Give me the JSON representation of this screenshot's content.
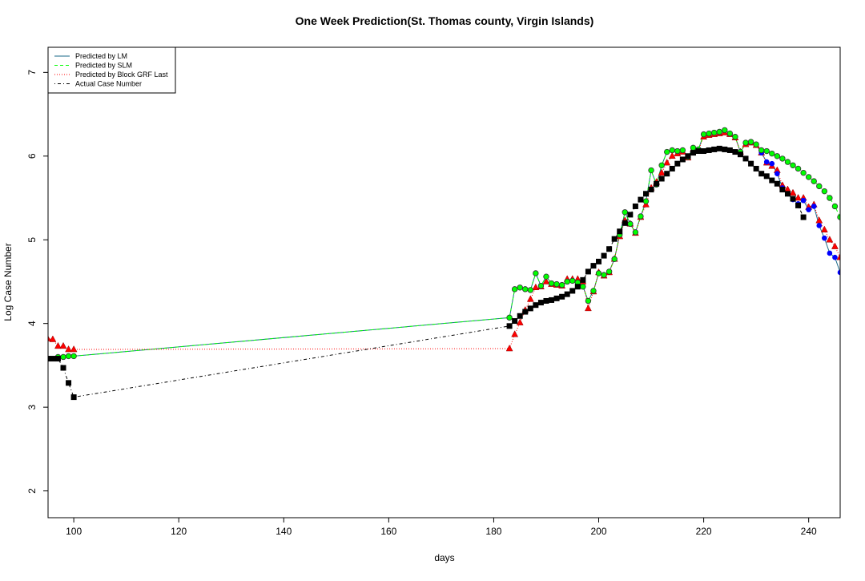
{
  "chart_data": {
    "type": "line",
    "title": "One Week Prediction(St. Thomas county, Virgin Islands)",
    "x_label": "days",
    "y_label": "Log Case Number",
    "xlim": [
      95.1,
      246
    ],
    "ylim": [
      1.68,
      7.3
    ],
    "xticks": [
      100,
      120,
      140,
      160,
      180,
      200,
      220,
      240
    ],
    "yticks": [
      2,
      3,
      4,
      5,
      6,
      7
    ],
    "legend": "top-left",
    "series": [
      {
        "name": "Predicted by LM",
        "color": "#0000ff",
        "line_color": "#1a6a8a",
        "line_style": "solid",
        "marker": "circle",
        "x": [
          97,
          98,
          99,
          100,
          183,
          184,
          185,
          186,
          187,
          188,
          189,
          190,
          191,
          192,
          193,
          194,
          195,
          196,
          197,
          198,
          199,
          200,
          201,
          202,
          203,
          204,
          205,
          206,
          207,
          208,
          209,
          210,
          211,
          212,
          213,
          214,
          215,
          216,
          217,
          218,
          219,
          220,
          221,
          222,
          223,
          224,
          225,
          226,
          227,
          228,
          229,
          230,
          231,
          232,
          233,
          234,
          235,
          236,
          237,
          238,
          239,
          240,
          241,
          242,
          243,
          244,
          245,
          246
        ],
        "values": [
          3.6,
          3.6,
          3.61,
          3.61,
          4.07,
          4.41,
          4.43,
          4.41,
          4.4,
          4.6,
          4.45,
          4.56,
          4.48,
          4.47,
          4.46,
          4.5,
          4.51,
          4.49,
          4.44,
          4.27,
          4.39,
          4.6,
          4.58,
          4.62,
          4.77,
          5.06,
          5.33,
          5.19,
          5.09,
          5.28,
          5.46,
          5.83,
          5.66,
          5.89,
          6.05,
          6.07,
          6.06,
          6.07,
          5.99,
          6.1,
          6.08,
          6.26,
          6.27,
          6.28,
          6.29,
          6.31,
          6.27,
          6.23,
          6.05,
          6.16,
          6.17,
          6.14,
          6.04,
          5.93,
          5.91,
          5.79,
          5.62,
          5.55,
          5.48,
          5.43,
          5.47,
          5.36,
          5.4,
          5.17,
          5.02,
          4.84,
          4.79,
          4.61
        ]
      },
      {
        "name": "Predicted by SLM",
        "color": "#00ff00",
        "line_color": "#00ff00",
        "line_style": "dashed",
        "marker": "circle",
        "x": [
          97,
          98,
          99,
          100,
          183,
          184,
          185,
          186,
          187,
          188,
          189,
          190,
          191,
          192,
          193,
          194,
          195,
          196,
          197,
          198,
          199,
          200,
          201,
          202,
          203,
          204,
          205,
          206,
          207,
          208,
          209,
          210,
          211,
          212,
          213,
          214,
          215,
          216,
          217,
          218,
          219,
          220,
          221,
          222,
          223,
          224,
          225,
          226,
          227,
          228,
          229,
          230,
          231,
          232,
          233,
          234,
          235,
          236,
          237,
          238,
          239,
          240,
          241,
          242,
          243,
          244,
          245,
          246
        ],
        "values": [
          3.6,
          3.6,
          3.61,
          3.61,
          4.07,
          4.41,
          4.43,
          4.41,
          4.4,
          4.6,
          4.45,
          4.56,
          4.48,
          4.47,
          4.46,
          4.5,
          4.51,
          4.49,
          4.44,
          4.27,
          4.39,
          4.6,
          4.58,
          4.62,
          4.77,
          5.06,
          5.33,
          5.19,
          5.09,
          5.28,
          5.46,
          5.83,
          5.66,
          5.89,
          6.05,
          6.07,
          6.06,
          6.07,
          5.99,
          6.1,
          6.08,
          6.26,
          6.27,
          6.28,
          6.29,
          6.31,
          6.27,
          6.23,
          6.05,
          6.16,
          6.17,
          6.14,
          6.07,
          6.06,
          6.03,
          6.0,
          5.97,
          5.93,
          5.89,
          5.85,
          5.8,
          5.75,
          5.7,
          5.64,
          5.58,
          5.5,
          5.4,
          5.27
        ]
      },
      {
        "name": "Predicted by Block GRF Last",
        "color": "#ff0000",
        "line_color": "#ff0000",
        "line_style": "dotted",
        "marker": "triangle",
        "x": [
          95,
          96,
          97,
          98,
          99,
          100,
          183,
          184,
          185,
          186,
          187,
          188,
          189,
          190,
          191,
          192,
          193,
          194,
          195,
          196,
          197,
          198,
          199,
          200,
          201,
          202,
          203,
          204,
          205,
          206,
          207,
          208,
          209,
          210,
          211,
          212,
          213,
          214,
          215,
          216,
          217,
          218,
          219,
          220,
          221,
          222,
          223,
          224,
          225,
          226,
          227,
          228,
          229,
          230,
          231,
          232,
          233,
          234,
          235,
          236,
          237,
          238,
          239,
          240,
          241,
          242,
          243,
          244,
          245,
          246
        ],
        "values": [
          3.82,
          3.81,
          3.73,
          3.73,
          3.69,
          3.69,
          3.7,
          3.87,
          4.01,
          4.16,
          4.29,
          4.43,
          4.44,
          4.5,
          4.47,
          4.46,
          4.45,
          4.53,
          4.53,
          4.53,
          4.5,
          4.18,
          4.38,
          4.61,
          4.57,
          4.61,
          4.77,
          5.04,
          5.23,
          5.19,
          5.08,
          5.27,
          5.42,
          5.62,
          5.69,
          5.8,
          5.92,
          6.0,
          6.03,
          6.05,
          5.98,
          6.08,
          6.07,
          6.23,
          6.25,
          6.26,
          6.27,
          6.28,
          6.26,
          6.22,
          6.05,
          6.14,
          6.16,
          6.13,
          6.04,
          5.92,
          5.88,
          5.83,
          5.65,
          5.6,
          5.56,
          5.5,
          5.5,
          5.39,
          5.42,
          5.23,
          5.12,
          5.0,
          4.92,
          4.79
        ]
      },
      {
        "name": "Actual Case Number",
        "color": "#000000",
        "line_color": "#000000",
        "line_style": "dashdot",
        "marker": "square",
        "x": [
          95,
          96,
          97,
          98,
          99,
          100,
          183,
          184,
          185,
          186,
          187,
          188,
          189,
          190,
          191,
          192,
          193,
          194,
          195,
          196,
          197,
          198,
          199,
          200,
          201,
          202,
          203,
          204,
          205,
          206,
          207,
          208,
          209,
          210,
          211,
          212,
          213,
          214,
          215,
          216,
          217,
          218,
          219,
          220,
          221,
          222,
          223,
          224,
          225,
          226,
          227,
          228,
          229,
          230,
          231,
          232,
          233,
          234,
          235,
          236,
          237,
          238,
          239
        ],
        "values": [
          3.58,
          3.58,
          3.58,
          3.47,
          3.29,
          3.12,
          3.97,
          4.03,
          4.09,
          4.14,
          4.18,
          4.22,
          4.25,
          4.27,
          4.28,
          4.3,
          4.32,
          4.35,
          4.39,
          4.44,
          4.52,
          4.62,
          4.69,
          4.74,
          4.81,
          4.89,
          5.01,
          5.1,
          5.2,
          5.3,
          5.4,
          5.48,
          5.55,
          5.6,
          5.67,
          5.73,
          5.79,
          5.85,
          5.91,
          5.96,
          6.0,
          6.04,
          6.06,
          6.06,
          6.07,
          6.08,
          6.09,
          6.08,
          6.07,
          6.05,
          6.02,
          5.97,
          5.91,
          5.85,
          5.79,
          5.76,
          5.71,
          5.67,
          5.6,
          5.55,
          5.49,
          5.41,
          5.27
        ]
      }
    ]
  }
}
